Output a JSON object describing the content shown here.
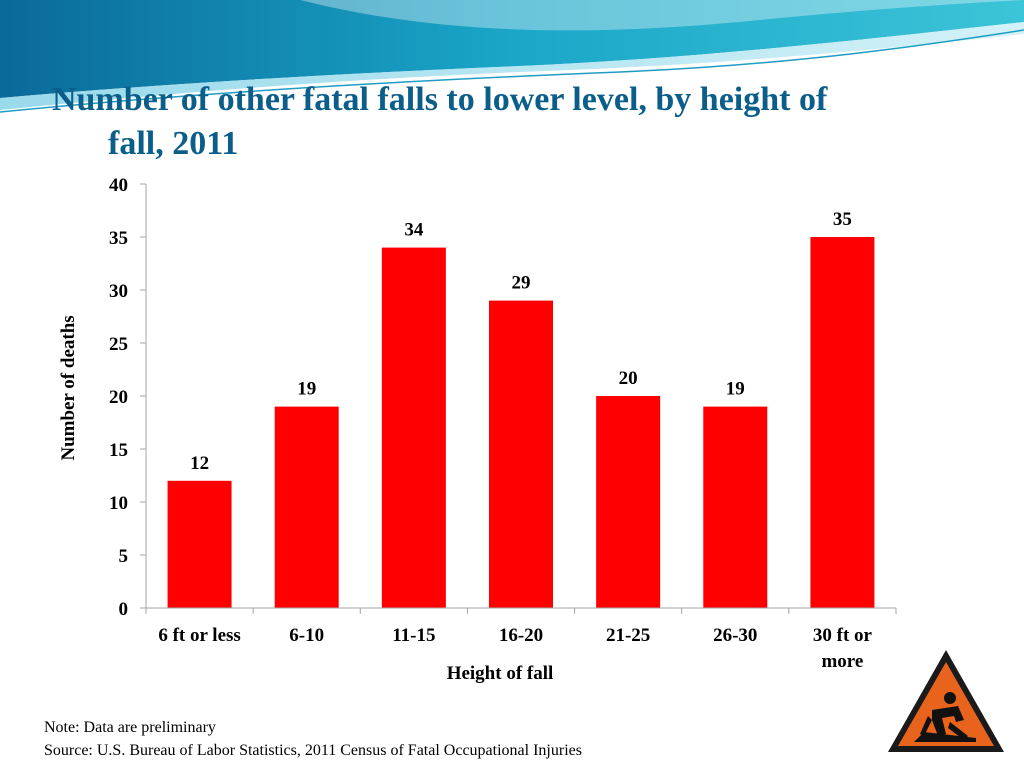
{
  "slide": {
    "title_line1": "Number of other fatal falls to lower level, by height of",
    "title_line2": "fall, 2011",
    "note": "Note: Data are preliminary",
    "source": "Source: U.S. Bureau of Labor Statistics, 2011 Census of Fatal Occupational Injuries",
    "accent_color": "#0b5e8a",
    "icon": "warning-construction-icon"
  },
  "chart_data": {
    "type": "bar",
    "categories": [
      "6 ft or less",
      "6-10",
      "11-15",
      "16-20",
      "21-25",
      "26-30",
      "30 ft or more"
    ],
    "values": [
      12,
      19,
      34,
      29,
      20,
      19,
      35
    ],
    "title": "",
    "xlabel": "Height of fall",
    "ylabel": "Number of deaths",
    "ylim": [
      0,
      40
    ],
    "yticks": [
      0,
      5,
      10,
      15,
      20,
      25,
      30,
      35,
      40
    ],
    "grid": false,
    "data_labels": true,
    "bar_color": "#ff0000"
  }
}
